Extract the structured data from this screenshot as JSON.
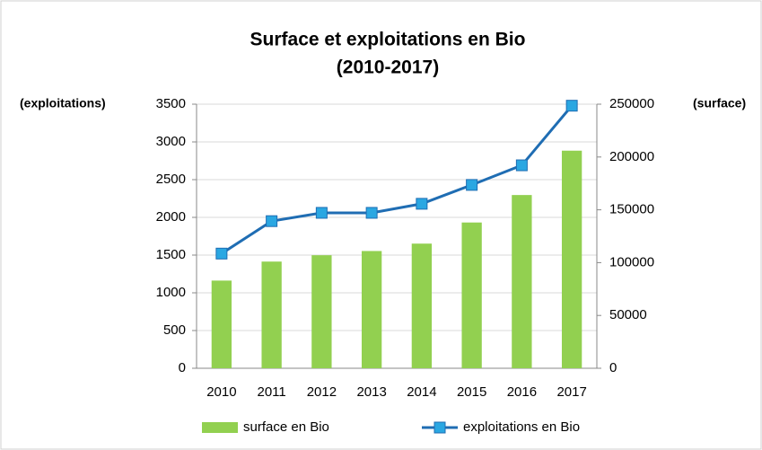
{
  "chart_data": {
    "type": "bar_line",
    "title": "Surface et exploitations en Bio",
    "subtitle": "(2010-2017)",
    "y_label": "(exploitations)",
    "y2_label": "(surface)",
    "categories": [
      "2010",
      "2011",
      "2012",
      "2013",
      "2014",
      "2015",
      "2016",
      "2017"
    ],
    "series": [
      {
        "name": "surface en Bio",
        "type": "bar",
        "axis": "y2",
        "color": "#92d050",
        "values": [
          83000,
          101000,
          107000,
          111000,
          118000,
          138000,
          164000,
          206000
        ]
      },
      {
        "name": "exploitations en Bio",
        "type": "line",
        "axis": "y",
        "color": "#1f6db3",
        "marker_color": "#2aa7e2",
        "values": [
          1520,
          1950,
          2060,
          2060,
          2180,
          2430,
          2690,
          3480
        ]
      }
    ],
    "ylim": [
      0,
      3500
    ],
    "yticks": [
      0,
      500,
      1000,
      1500,
      2000,
      2500,
      3000,
      3500
    ],
    "y2lim": [
      0,
      250000
    ],
    "y2ticks": [
      0,
      50000,
      100000,
      150000,
      200000,
      250000
    ],
    "grid": true,
    "legend": "bottom"
  }
}
